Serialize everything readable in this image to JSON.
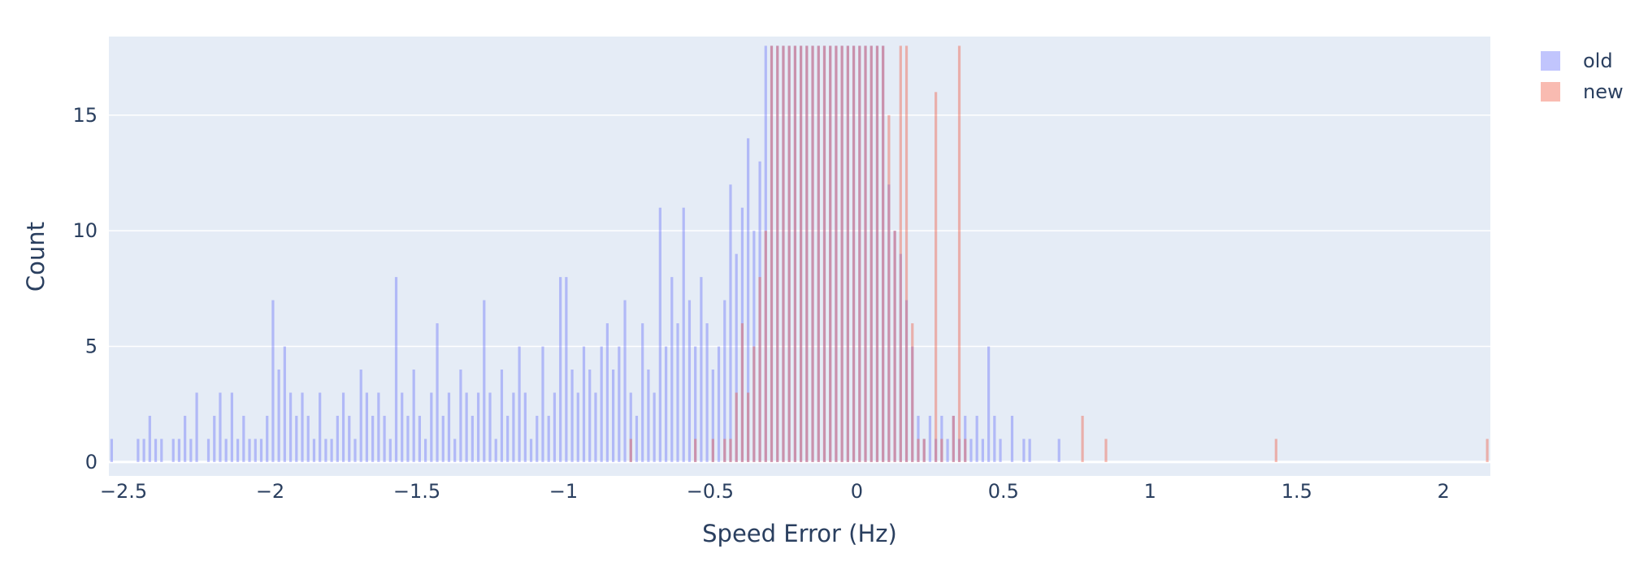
{
  "chart_data": {
    "type": "histogram",
    "xlabel": "Speed Error (Hz)",
    "ylabel": "Count",
    "xlim": [
      -2.55,
      2.16
    ],
    "ylim": [
      -0.6,
      18.4
    ],
    "x_ticks": [
      -2.5,
      -2,
      -1.5,
      -1,
      -0.5,
      0,
      0.5,
      1,
      1.5,
      2
    ],
    "x_tick_labels": [
      "−2.5",
      "−2",
      "−1.5",
      "−1",
      "−0.5",
      "0",
      "0.5",
      "1",
      "1.5",
      "2"
    ],
    "y_ticks": [
      0,
      5,
      10,
      15
    ],
    "y_tick_labels": [
      "0",
      "5",
      "10",
      "15"
    ],
    "grid": true,
    "barmode": "overlay",
    "bin_width": 0.01,
    "legend_position": "top-right",
    "series": [
      {
        "name": "old",
        "color": "#636efa",
        "opacity": 0.4,
        "bins": [
          [
            -2.54,
            1
          ],
          [
            -2.45,
            1
          ],
          [
            -2.43,
            1
          ],
          [
            -2.41,
            2
          ],
          [
            -2.39,
            1
          ],
          [
            -2.37,
            1
          ],
          [
            -2.33,
            1
          ],
          [
            -2.31,
            1
          ],
          [
            -2.29,
            2
          ],
          [
            -2.27,
            1
          ],
          [
            -2.25,
            3
          ],
          [
            -2.21,
            1
          ],
          [
            -2.19,
            2
          ],
          [
            -2.17,
            3
          ],
          [
            -2.15,
            1
          ],
          [
            -2.13,
            3
          ],
          [
            -2.11,
            1
          ],
          [
            -2.09,
            2
          ],
          [
            -2.07,
            1
          ],
          [
            -2.05,
            1
          ],
          [
            -2.03,
            1
          ],
          [
            -2.01,
            2
          ],
          [
            -1.99,
            7
          ],
          [
            -1.97,
            4
          ],
          [
            -1.95,
            5
          ],
          [
            -1.93,
            3
          ],
          [
            -1.91,
            2
          ],
          [
            -1.89,
            3
          ],
          [
            -1.87,
            2
          ],
          [
            -1.85,
            1
          ],
          [
            -1.83,
            3
          ],
          [
            -1.81,
            1
          ],
          [
            -1.79,
            1
          ],
          [
            -1.77,
            2
          ],
          [
            -1.75,
            3
          ],
          [
            -1.73,
            2
          ],
          [
            -1.71,
            1
          ],
          [
            -1.69,
            4
          ],
          [
            -1.67,
            3
          ],
          [
            -1.65,
            2
          ],
          [
            -1.63,
            3
          ],
          [
            -1.61,
            2
          ],
          [
            -1.59,
            1
          ],
          [
            -1.57,
            8
          ],
          [
            -1.55,
            3
          ],
          [
            -1.53,
            2
          ],
          [
            -1.51,
            4
          ],
          [
            -1.49,
            2
          ],
          [
            -1.47,
            1
          ],
          [
            -1.45,
            3
          ],
          [
            -1.43,
            6
          ],
          [
            -1.41,
            2
          ],
          [
            -1.39,
            3
          ],
          [
            -1.37,
            1
          ],
          [
            -1.35,
            4
          ],
          [
            -1.33,
            3
          ],
          [
            -1.31,
            2
          ],
          [
            -1.29,
            3
          ],
          [
            -1.27,
            7
          ],
          [
            -1.25,
            3
          ],
          [
            -1.23,
            1
          ],
          [
            -1.21,
            4
          ],
          [
            -1.19,
            2
          ],
          [
            -1.17,
            3
          ],
          [
            -1.15,
            5
          ],
          [
            -1.13,
            3
          ],
          [
            -1.11,
            1
          ],
          [
            -1.09,
            2
          ],
          [
            -1.07,
            5
          ],
          [
            -1.05,
            2
          ],
          [
            -1.03,
            3
          ],
          [
            -1.01,
            8
          ],
          [
            -0.99,
            8
          ],
          [
            -0.97,
            4
          ],
          [
            -0.95,
            3
          ],
          [
            -0.93,
            5
          ],
          [
            -0.91,
            4
          ],
          [
            -0.89,
            3
          ],
          [
            -0.87,
            5
          ],
          [
            -0.85,
            6
          ],
          [
            -0.83,
            4
          ],
          [
            -0.81,
            5
          ],
          [
            -0.79,
            7
          ],
          [
            -0.77,
            3
          ],
          [
            -0.75,
            2
          ],
          [
            -0.73,
            6
          ],
          [
            -0.71,
            4
          ],
          [
            -0.69,
            3
          ],
          [
            -0.67,
            11
          ],
          [
            -0.65,
            5
          ],
          [
            -0.63,
            8
          ],
          [
            -0.61,
            6
          ],
          [
            -0.59,
            11
          ],
          [
            -0.57,
            7
          ],
          [
            -0.55,
            5
          ],
          [
            -0.53,
            8
          ],
          [
            -0.51,
            6
          ],
          [
            -0.49,
            4
          ],
          [
            -0.47,
            5
          ],
          [
            -0.45,
            7
          ],
          [
            -0.43,
            12
          ],
          [
            -0.41,
            9
          ],
          [
            -0.39,
            11
          ],
          [
            -0.37,
            14
          ],
          [
            -0.35,
            10
          ],
          [
            -0.33,
            13
          ],
          [
            -0.31,
            18
          ],
          [
            -0.29,
            18
          ],
          [
            -0.27,
            18
          ],
          [
            -0.25,
            18
          ],
          [
            -0.23,
            18
          ],
          [
            -0.21,
            18
          ],
          [
            -0.19,
            18
          ],
          [
            -0.17,
            18
          ],
          [
            -0.15,
            18
          ],
          [
            -0.13,
            18
          ],
          [
            -0.11,
            18
          ],
          [
            -0.09,
            18
          ],
          [
            -0.07,
            18
          ],
          [
            -0.05,
            18
          ],
          [
            -0.03,
            18
          ],
          [
            -0.01,
            18
          ],
          [
            0.01,
            18
          ],
          [
            0.03,
            18
          ],
          [
            0.05,
            18
          ],
          [
            0.07,
            18
          ],
          [
            0.09,
            18
          ],
          [
            0.11,
            12
          ],
          [
            0.13,
            10
          ],
          [
            0.15,
            9
          ],
          [
            0.17,
            7
          ],
          [
            0.19,
            5
          ],
          [
            0.21,
            2
          ],
          [
            0.23,
            1
          ],
          [
            0.25,
            2
          ],
          [
            0.27,
            1
          ],
          [
            0.29,
            2
          ],
          [
            0.31,
            1
          ],
          [
            0.33,
            2
          ],
          [
            0.35,
            1
          ],
          [
            0.37,
            2
          ],
          [
            0.39,
            1
          ],
          [
            0.41,
            2
          ],
          [
            0.43,
            1
          ],
          [
            0.45,
            5
          ],
          [
            0.47,
            2
          ],
          [
            0.49,
            1
          ],
          [
            0.53,
            2
          ],
          [
            0.57,
            1
          ],
          [
            0.59,
            1
          ],
          [
            0.69,
            1
          ]
        ]
      },
      {
        "name": "new",
        "color": "#ef553b",
        "opacity": 0.4,
        "bins": [
          [
            -0.77,
            1
          ],
          [
            -0.55,
            1
          ],
          [
            -0.49,
            1
          ],
          [
            -0.45,
            1
          ],
          [
            -0.43,
            1
          ],
          [
            -0.41,
            3
          ],
          [
            -0.39,
            6
          ],
          [
            -0.37,
            3
          ],
          [
            -0.35,
            5
          ],
          [
            -0.33,
            8
          ],
          [
            -0.31,
            10
          ],
          [
            -0.29,
            18
          ],
          [
            -0.27,
            18
          ],
          [
            -0.25,
            18
          ],
          [
            -0.23,
            18
          ],
          [
            -0.21,
            18
          ],
          [
            -0.19,
            18
          ],
          [
            -0.17,
            18
          ],
          [
            -0.15,
            18
          ],
          [
            -0.13,
            18
          ],
          [
            -0.11,
            18
          ],
          [
            -0.09,
            18
          ],
          [
            -0.07,
            18
          ],
          [
            -0.05,
            18
          ],
          [
            -0.03,
            18
          ],
          [
            -0.01,
            18
          ],
          [
            0.01,
            18
          ],
          [
            0.03,
            18
          ],
          [
            0.05,
            18
          ],
          [
            0.07,
            18
          ],
          [
            0.09,
            18
          ],
          [
            0.11,
            15
          ],
          [
            0.13,
            10
          ],
          [
            0.15,
            18
          ],
          [
            0.17,
            18
          ],
          [
            0.19,
            6
          ],
          [
            0.21,
            1
          ],
          [
            0.23,
            1
          ],
          [
            0.27,
            16
          ],
          [
            0.29,
            1
          ],
          [
            0.33,
            2
          ],
          [
            0.35,
            18
          ],
          [
            0.37,
            1
          ],
          [
            0.77,
            2
          ],
          [
            0.85,
            1
          ],
          [
            1.43,
            1
          ],
          [
            2.15,
            1
          ]
        ]
      }
    ]
  }
}
